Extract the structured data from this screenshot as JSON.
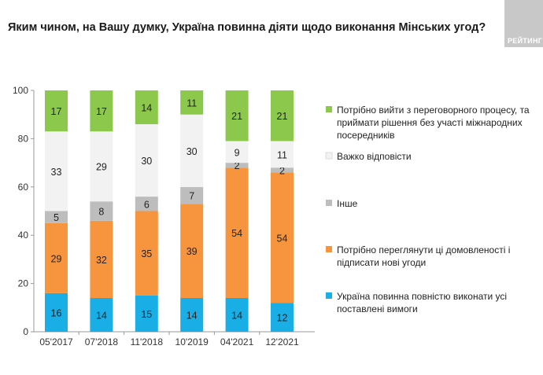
{
  "title": "Яким чином, на Вашу думку, Україна повинна діяти щодо виконання Мінських угод?",
  "logo_text": "РЕЙТИНГ",
  "chart_data": {
    "type": "bar",
    "stacked": true,
    "title": "Яким чином, на Вашу думку, Україна повинна діяти щодо виконання Мінських угод?",
    "categories": [
      "05'2017",
      "07'2018",
      "11'2018",
      "10'2019",
      "04'2021",
      "12'2021"
    ],
    "ylim": [
      0,
      100
    ],
    "yticks": [
      0,
      20,
      40,
      60,
      80,
      100
    ],
    "legend_position": "right",
    "series": [
      {
        "name": "Україна повинна повністю виконати усі поставлені вимоги",
        "lines": [
          "Україна повинна повністю виконати усі",
          "поставлені вимоги"
        ],
        "color": "#1aaee6",
        "values": [
          16,
          14,
          15,
          14,
          14,
          12
        ]
      },
      {
        "name": "Потрібно переглянути ці домовленості і підписати нові угоди",
        "lines": [
          "Потрібно переглянути ці домовленості і",
          "підписати нові угоди"
        ],
        "color": "#f7953f",
        "values": [
          29,
          32,
          35,
          39,
          54,
          54
        ]
      },
      {
        "name": "Інше",
        "lines": [
          "Інше"
        ],
        "color": "#bdbdbd",
        "values": [
          5,
          8,
          6,
          7,
          2,
          2
        ]
      },
      {
        "name": "Важко відповісти",
        "lines": [
          "Важко відповісти"
        ],
        "color": "#f2f2f2",
        "values": [
          33,
          29,
          30,
          30,
          9,
          11
        ]
      },
      {
        "name": "Потрібно вийти з переговорного процесу, та приймати рішення без участі міжнародних посередників",
        "lines": [
          "Потрібно вийти з переговорного процесу, та",
          "приймати рішення без участі міжнародних",
          "посередників"
        ],
        "color": "#8cc84b",
        "values": [
          17,
          17,
          14,
          11,
          21,
          21
        ]
      }
    ]
  }
}
